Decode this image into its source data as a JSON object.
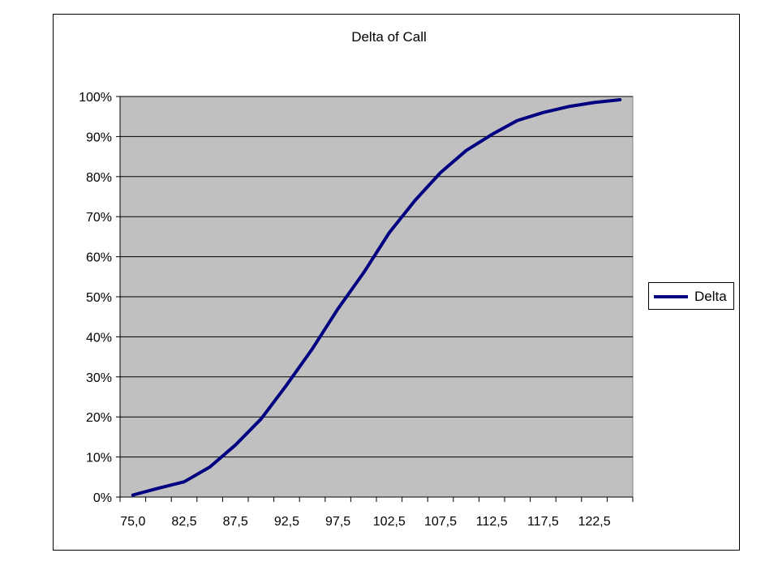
{
  "chart_data": {
    "type": "line",
    "title": "Delta of Call",
    "xlabel": "",
    "ylabel": "",
    "x": [
      76.25,
      78.75,
      81.25,
      83.75,
      86.25,
      88.75,
      91.25,
      93.75,
      96.25,
      98.75,
      101.25,
      103.75,
      106.25,
      108.75,
      111.25,
      113.75,
      116.25,
      118.75,
      121.25,
      123.75
    ],
    "x_tick_labels": [
      "75,0",
      "82,5",
      "87,5",
      "92,5",
      "97,5",
      "102,5",
      "107,5",
      "112,5",
      "117,5",
      "122,5"
    ],
    "y_tick_labels": [
      "0%",
      "10%",
      "20%",
      "30%",
      "40%",
      "50%",
      "60%",
      "70%",
      "80%",
      "90%",
      "100%"
    ],
    "ylim": [
      0,
      100
    ],
    "grid": true,
    "legend_position": "right",
    "series": [
      {
        "name": "Delta",
        "color": "#000080",
        "values": [
          0.5,
          2.2,
          3.8,
          7.5,
          13,
          19.5,
          28,
          37,
          47,
          56,
          66,
          74,
          81,
          86.5,
          90.5,
          94,
          96,
          97.5,
          98.5,
          99.2
        ]
      }
    ],
    "plot_background": "#c0c0c0",
    "gridline_color": "#000000"
  }
}
